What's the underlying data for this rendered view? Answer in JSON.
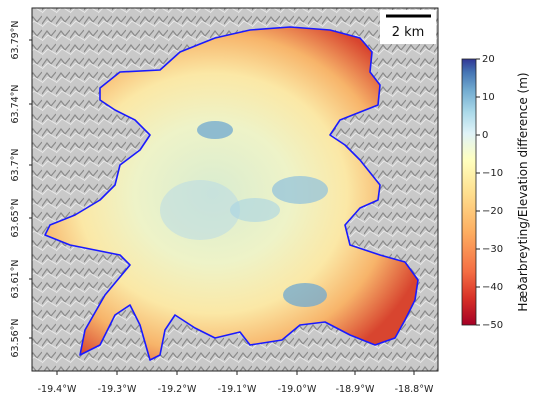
{
  "map": {
    "lat_ticks": [
      "63.79°N",
      "63.74°N",
      "63.7°N",
      "63.65°N",
      "63.61°N",
      "63.56°N"
    ],
    "lon_ticks": [
      "-19.4°W",
      "-19.3°W",
      "-19.2°W",
      "-19.1°W",
      "-19.0°W",
      "-18.9°W",
      "-18.8°W"
    ],
    "scale_bar_label": "2 km",
    "outline_color": "#1a1aff"
  },
  "colorbar": {
    "title": "Hæðarbreyting/Elevation difference (m)",
    "ticks": [
      "20",
      "10",
      "0",
      "−10",
      "−20",
      "−30",
      "−40",
      "−50"
    ],
    "range": [
      -50,
      20
    ],
    "colormap": "RdYlBu",
    "stops": [
      "#a50026",
      "#d73027",
      "#f46d43",
      "#fdae61",
      "#fee090",
      "#ffffbf",
      "#e0f3f8",
      "#abd9e9",
      "#74add1",
      "#4575b4",
      "#313695"
    ]
  }
}
